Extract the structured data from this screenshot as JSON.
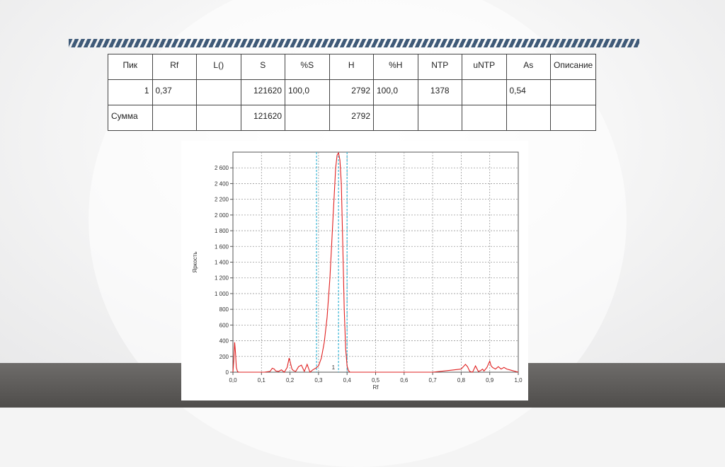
{
  "table": {
    "headers": [
      "Пик",
      "Rf",
      "L()",
      "S",
      "%S",
      "H",
      "%H",
      "NTP",
      "uNTP",
      "As",
      "Описание"
    ],
    "rows": [
      [
        "1",
        "0,37",
        "",
        "121620",
        "100,0",
        "2792",
        "100,0",
        "1378",
        "",
        "0,54",
        ""
      ],
      [
        "Сумма",
        "",
        "",
        "121620",
        "",
        "2792",
        "",
        "",
        "",
        "",
        ""
      ]
    ]
  },
  "chart_data": {
    "type": "line",
    "xlabel": "Rf",
    "ylabel": "Яркость",
    "xlim": [
      0.0,
      1.0
    ],
    "ylim": [
      0,
      2800
    ],
    "x_ticks": [
      "0,0",
      "0,1",
      "0,2",
      "0,3",
      "0,4",
      "0,5",
      "0,6",
      "0,7",
      "0,8",
      "0,9",
      "1,0"
    ],
    "y_ticks": [
      "0",
      "200",
      "400",
      "600",
      "800",
      "1 000",
      "1 200",
      "1 400",
      "1 600",
      "1 800",
      "2 000",
      "2 200",
      "2 400",
      "2 600"
    ],
    "grid": true,
    "peak_label": "1",
    "peak_markers": [
      {
        "x": 0.293,
        "color": "#39b6d6",
        "style": "dashed"
      },
      {
        "x": 0.37,
        "color": "#39b6d6",
        "style": "dashed"
      },
      {
        "x": 0.4,
        "color": "#39b6d6",
        "style": "dashed"
      }
    ],
    "series": [
      {
        "color": "#e02020",
        "x": [
          0.0,
          0.003,
          0.006,
          0.009,
          0.012,
          0.016,
          0.02,
          0.03,
          0.05,
          0.08,
          0.11,
          0.13,
          0.138,
          0.145,
          0.15,
          0.16,
          0.17,
          0.18,
          0.19,
          0.197,
          0.202,
          0.207,
          0.212,
          0.22,
          0.23,
          0.24,
          0.25,
          0.26,
          0.27,
          0.28,
          0.29,
          0.3,
          0.31,
          0.32,
          0.33,
          0.34,
          0.35,
          0.36,
          0.365,
          0.37,
          0.375,
          0.38,
          0.385,
          0.39,
          0.395,
          0.4,
          0.405,
          0.41,
          0.43,
          0.5,
          0.6,
          0.7,
          0.8,
          0.815,
          0.822,
          0.83,
          0.84,
          0.85,
          0.86,
          0.868,
          0.875,
          0.88,
          0.89,
          0.9,
          0.905,
          0.91,
          0.92,
          0.93,
          0.94,
          0.95,
          0.96,
          0.97,
          0.98,
          0.99,
          1.0
        ],
        "y": [
          0,
          150,
          380,
          250,
          60,
          10,
          0,
          0,
          0,
          0,
          0,
          10,
          50,
          40,
          15,
          10,
          30,
          0,
          60,
          180,
          110,
          40,
          20,
          10,
          70,
          90,
          10,
          100,
          0,
          30,
          50,
          80,
          180,
          380,
          700,
          1200,
          1900,
          2600,
          2760,
          2792,
          2700,
          2400,
          1600,
          800,
          300,
          80,
          20,
          0,
          0,
          0,
          0,
          0,
          40,
          100,
          70,
          10,
          0,
          80,
          10,
          20,
          40,
          15,
          60,
          140,
          80,
          60,
          40,
          70,
          40,
          60,
          40,
          30,
          20,
          10,
          0
        ]
      }
    ]
  }
}
